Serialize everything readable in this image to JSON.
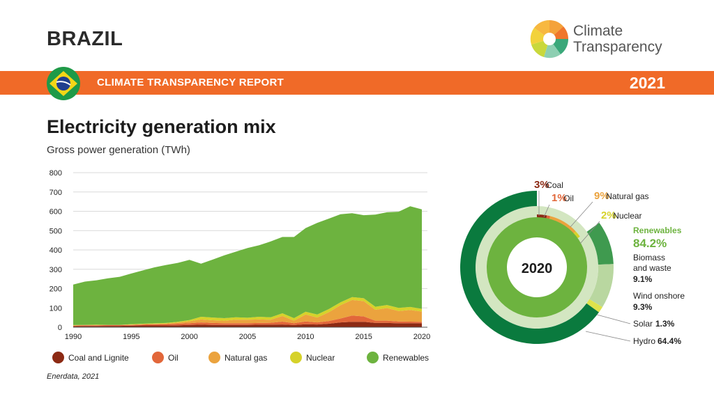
{
  "header": {
    "country": "BRAZIL",
    "logo_line1": "Climate",
    "logo_line2": "Transparency",
    "banner_title": "CLIMATE TRANSPARENCY REPORT",
    "banner_year": "2021"
  },
  "colors": {
    "banner": "#f06a28",
    "coal": "#8c2a14",
    "oil": "#e2673a",
    "gas": "#eba33e",
    "nuclear": "#d6d22a",
    "renewables": "#6db33f",
    "biomass": "#3f9a4f",
    "wind": "#b9d7a0",
    "solar": "#dfe34b",
    "hydro": "#0a7a3e"
  },
  "source": "Enerdata, 2021",
  "chart_data": [
    {
      "type": "area",
      "title": "Electricity generation mix",
      "subtitle": "Gross power generation (TWh)",
      "ylim": [
        0,
        800
      ],
      "yticks": [
        0,
        100,
        200,
        300,
        400,
        500,
        600,
        700,
        800
      ],
      "xticks": [
        1990,
        1995,
        2000,
        2005,
        2010,
        2015,
        2020
      ],
      "grid": true,
      "x": [
        1990,
        1991,
        1992,
        1993,
        1994,
        1995,
        1996,
        1997,
        1998,
        1999,
        2000,
        2001,
        2002,
        2003,
        2004,
        2005,
        2006,
        2007,
        2008,
        2009,
        2010,
        2011,
        2012,
        2013,
        2014,
        2015,
        2016,
        2017,
        2018,
        2019,
        2020
      ],
      "series": [
        {
          "name": "Coal and Lignite",
          "key": "coal",
          "values": [
            5,
            6,
            6,
            7,
            7,
            8,
            9,
            9,
            9,
            10,
            12,
            13,
            12,
            12,
            12,
            12,
            13,
            13,
            14,
            11,
            15,
            14,
            18,
            25,
            28,
            28,
            22,
            22,
            20,
            21,
            20
          ]
        },
        {
          "name": "Oil",
          "key": "oil",
          "values": [
            3,
            4,
            4,
            4,
            4,
            4,
            5,
            6,
            7,
            8,
            9,
            12,
            10,
            9,
            9,
            9,
            9,
            10,
            15,
            10,
            15,
            11,
            14,
            20,
            32,
            28,
            12,
            12,
            10,
            8,
            8
          ]
        },
        {
          "name": "Natural gas",
          "key": "gas",
          "values": [
            1,
            1,
            1,
            1,
            1,
            1,
            2,
            2,
            3,
            6,
            10,
            15,
            14,
            13,
            18,
            18,
            18,
            16,
            29,
            13,
            36,
            25,
            46,
            69,
            81,
            79,
            56,
            65,
            54,
            60,
            53
          ]
        },
        {
          "name": "Nuclear",
          "key": "nuclear",
          "values": [
            2,
            1,
            2,
            0,
            0,
            3,
            2,
            3,
            3,
            4,
            6,
            14,
            14,
            13,
            12,
            10,
            14,
            12,
            14,
            13,
            14,
            16,
            16,
            15,
            15,
            15,
            16,
            16,
            16,
            16,
            14
          ]
        },
        {
          "name": "Renewables",
          "key": "renewables",
          "values": [
            210,
            224,
            230,
            241,
            249,
            262,
            276,
            290,
            300,
            305,
            312,
            275,
            300,
            325,
            340,
            361,
            370,
            393,
            395,
            420,
            433,
            474,
            468,
            456,
            434,
            430,
            477,
            480,
            498,
            521,
            515
          ]
        }
      ]
    },
    {
      "type": "pie",
      "center_label": "2020",
      "inner_ring": [
        {
          "name": "Coal",
          "value": 3,
          "label": "3%",
          "key": "coal"
        },
        {
          "name": "Oil",
          "value": 1,
          "label": "1%",
          "key": "oil"
        },
        {
          "name": "Natural gas",
          "value": 9,
          "label": "9%",
          "key": "gas"
        },
        {
          "name": "Nuclear",
          "value": 2,
          "label": "2%",
          "key": "nuclear"
        },
        {
          "name": "Renewables",
          "value": 84.2,
          "label": "84.2%",
          "key": "renewables"
        }
      ],
      "outer_ring": [
        {
          "name": "Biomass and waste",
          "line1": "Biomass",
          "line2": "and waste",
          "value": 9.1,
          "label": "9.1%",
          "key": "biomass"
        },
        {
          "name": "Wind onshore",
          "value": 9.3,
          "label": "9.3%",
          "key": "wind"
        },
        {
          "name": "Solar",
          "value": 1.3,
          "label": "1.3%",
          "key": "solar"
        },
        {
          "name": "Hydro",
          "value": 64.4,
          "label": "64.4%",
          "key": "hydro"
        }
      ]
    }
  ]
}
